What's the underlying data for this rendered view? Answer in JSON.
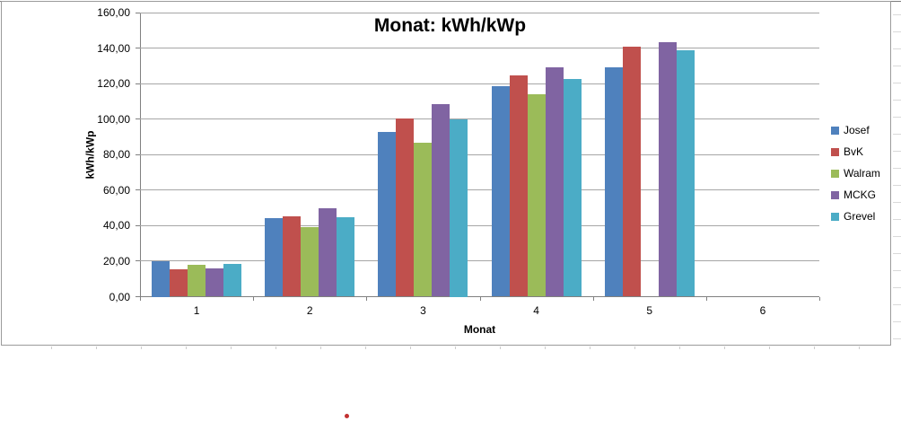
{
  "sheet": {
    "red_dot_color": "#C23131"
  },
  "chart_data": {
    "type": "bar",
    "title": "Monat: kWh/kWp",
    "xlabel": "Monat",
    "ylabel": "kWh/kWp",
    "categories": [
      "1",
      "2",
      "3",
      "4",
      "5",
      "6"
    ],
    "series": [
      {
        "name": "Josef",
        "color": "#4F81BD",
        "values": [
          20.0,
          44.3,
          93.0,
          118.4,
          129.0,
          0
        ]
      },
      {
        "name": "BvK",
        "color": "#C0504D",
        "values": [
          15.5,
          45.4,
          100.3,
          124.7,
          141.0,
          0
        ]
      },
      {
        "name": "Walram",
        "color": "#9BBB59",
        "values": [
          17.8,
          39.0,
          86.6,
          114.2,
          null,
          0
        ]
      },
      {
        "name": "MCKG",
        "color": "#8064A2",
        "values": [
          16.0,
          49.8,
          108.3,
          129.4,
          143.5,
          0
        ]
      },
      {
        "name": "Grevel",
        "color": "#4BACC6",
        "values": [
          18.7,
          44.8,
          100.0,
          122.6,
          139.0,
          0
        ]
      }
    ],
    "ylim": [
      0,
      160
    ],
    "ystep": 20,
    "ytick_labels": [
      "0,00",
      "20,00",
      "40,00",
      "60,00",
      "80,00",
      "100,00",
      "120,00",
      "140,00",
      "160,00"
    ],
    "grid": true,
    "legend_position": "right",
    "legend_labels": [
      "Josef",
      "BvK",
      "Walram",
      "MCKG",
      "Grevel"
    ]
  }
}
